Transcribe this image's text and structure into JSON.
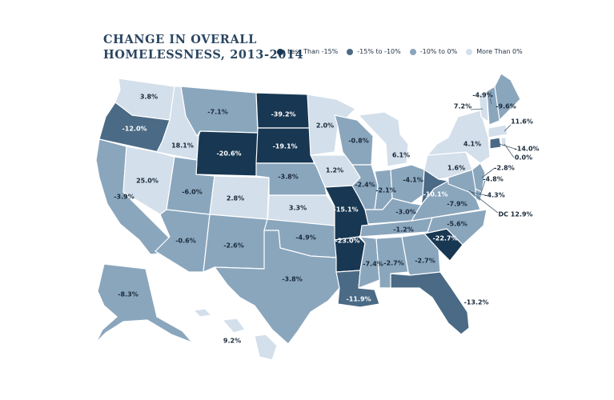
{
  "title": {
    "line1": "CHANGE IN OVERALL",
    "line2": "HOMELESSNESS, 2013-2014"
  },
  "legend": [
    {
      "label": "Less Than -15%",
      "color": "#183752"
    },
    {
      "label": "-15% to -10%",
      "color": "#4a6a85"
    },
    {
      "label": "-10% to 0%",
      "color": "#8aa6bd"
    },
    {
      "label": "More Than 0%",
      "color": "#d3dfea"
    }
  ],
  "chart_data": {
    "type": "choropleth",
    "region": "United States",
    "unit": "percent change",
    "states": [
      {
        "state": "WA",
        "value": 3.8,
        "label": "3.8%"
      },
      {
        "state": "OR",
        "value": -12.0,
        "label": "-12.0%"
      },
      {
        "state": "CA",
        "value": -3.9,
        "label": "-3.9%"
      },
      {
        "state": "NV",
        "value": 25.0,
        "label": "25.0%"
      },
      {
        "state": "ID",
        "value": 18.1,
        "label": "18.1%"
      },
      {
        "state": "MT",
        "value": -7.1,
        "label": "-7.1%"
      },
      {
        "state": "WY",
        "value": -20.6,
        "label": "-20.6%"
      },
      {
        "state": "UT",
        "value": -6.0,
        "label": "-6.0%"
      },
      {
        "state": "AZ",
        "value": -0.6,
        "label": "-0.6%"
      },
      {
        "state": "CO",
        "value": 2.8,
        "label": "2.8%"
      },
      {
        "state": "NM",
        "value": -2.6,
        "label": "-2.6%"
      },
      {
        "state": "ND",
        "value": -39.2,
        "label": "-39.2%"
      },
      {
        "state": "SD",
        "value": -19.1,
        "label": "-19.1%"
      },
      {
        "state": "NE",
        "value": -3.8,
        "label": "-3.8%"
      },
      {
        "state": "KS",
        "value": 3.3,
        "label": "3.3%"
      },
      {
        "state": "OK",
        "value": -4.9,
        "label": "-4.9%"
      },
      {
        "state": "TX",
        "value": -3.8,
        "label": "-3.8%"
      },
      {
        "state": "MN",
        "value": 2.0,
        "label": "2.0%"
      },
      {
        "state": "IA",
        "value": 1.2,
        "label": "1.2%"
      },
      {
        "state": "MO",
        "value": -15.1,
        "label": "-15.1%"
      },
      {
        "state": "AR",
        "value": -23.0,
        "label": "-23.0%"
      },
      {
        "state": "LA",
        "value": -11.9,
        "label": "-11.9%"
      },
      {
        "state": "WI",
        "value": -0.8,
        "label": "-0.8%"
      },
      {
        "state": "IL",
        "value": -2.4,
        "label": "-2.4%"
      },
      {
        "state": "MI",
        "value": 6.1,
        "label": "6.1%"
      },
      {
        "state": "IN",
        "value": -2.1,
        "label": "-2.1%"
      },
      {
        "state": "OH",
        "value": -4.1,
        "label": "-4.1%"
      },
      {
        "state": "KY",
        "value": -3.0,
        "label": "-3.0%"
      },
      {
        "state": "TN",
        "value": -1.2,
        "label": "-1.2%"
      },
      {
        "state": "MS",
        "value": -7.4,
        "label": "-7.4%"
      },
      {
        "state": "AL",
        "value": -2.7,
        "label": "-2.7%"
      },
      {
        "state": "GA",
        "value": -2.7,
        "label": "-2.7%"
      },
      {
        "state": "FL",
        "value": -13.2,
        "label": "-13.2%"
      },
      {
        "state": "SC",
        "value": -22.7,
        "label": "-22.7%"
      },
      {
        "state": "NC",
        "value": -5.6,
        "label": "-5.6%"
      },
      {
        "state": "VA",
        "value": -7.9,
        "label": "-7.9%"
      },
      {
        "state": "WV",
        "value": -10.1,
        "label": "-10.1%"
      },
      {
        "state": "PA",
        "value": 1.6,
        "label": "1.6%"
      },
      {
        "state": "NY",
        "value": 4.1,
        "label": "4.1%"
      },
      {
        "state": "VT",
        "value": 7.2,
        "label": "7.2%"
      },
      {
        "state": "NH",
        "value": -4.9,
        "label": "-4.9%"
      },
      {
        "state": "ME",
        "value": -9.6,
        "label": "-9.6%"
      },
      {
        "state": "MA",
        "value": 11.6,
        "label": "11.6%"
      },
      {
        "state": "CT",
        "value": -14.0,
        "label": "-14.0%"
      },
      {
        "state": "RI",
        "value": 0.0,
        "label": "0.0%"
      },
      {
        "state": "NJ",
        "value": -2.8,
        "label": "-2.8%"
      },
      {
        "state": "DE",
        "value": -4.8,
        "label": "-4.8%"
      },
      {
        "state": "MD",
        "value": -4.3,
        "label": "-4.3%"
      },
      {
        "state": "DC",
        "value": 12.9,
        "label": "DC 12.9%"
      },
      {
        "state": "AK",
        "value": -8.3,
        "label": "-8.3%"
      },
      {
        "state": "HI",
        "value": 9.2,
        "label": "9.2%"
      }
    ]
  }
}
